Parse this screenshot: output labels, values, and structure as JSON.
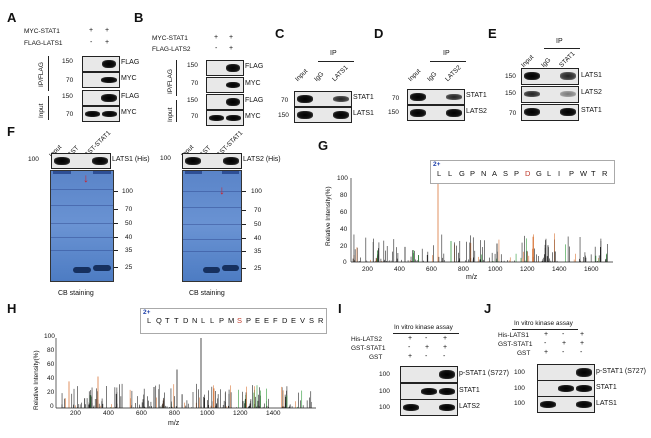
{
  "panels": {
    "A": "A",
    "B": "B",
    "C": "C",
    "D": "D",
    "E": "E",
    "F": "F",
    "G": "G",
    "H": "H",
    "I": "I",
    "J": "J"
  },
  "A": {
    "row1": "MYC-STAT1",
    "row2": "FLAG-LATS1",
    "r1": [
      "+",
      "+"
    ],
    "r2": [
      "-",
      "+"
    ],
    "side_top": "IP/FLAG",
    "side_bot": "Input",
    "labels": [
      "FLAG",
      "MYC",
      "FLAG",
      "MYC"
    ],
    "mw": [
      "150",
      "70",
      "150",
      "70"
    ]
  },
  "B": {
    "row1": "MYC-STAT1",
    "row2": "FLAG-LATS2",
    "r1": [
      "+",
      "+"
    ],
    "r2": [
      "-",
      "+"
    ],
    "side_top": "IP/FLAG",
    "side_bot": "Input",
    "labels": [
      "FLAG",
      "MYC",
      "FLAG",
      "MYC"
    ],
    "mw": [
      "150",
      "70",
      "150",
      "70"
    ]
  },
  "C": {
    "ip": "IP",
    "lanes": [
      "Input",
      "IgG",
      "LATS1"
    ],
    "labels": [
      "STAT1",
      "LATS1"
    ],
    "mw": [
      "70",
      "150"
    ]
  },
  "D": {
    "ip": "IP",
    "lanes": [
      "Input",
      "IgG",
      "LATS2"
    ],
    "labels": [
      "STAT1",
      "LATS2"
    ],
    "mw": [
      "70",
      "150"
    ]
  },
  "E": {
    "ip": "IP",
    "lanes": [
      "Input",
      "IgG",
      "STAT1"
    ],
    "labels": [
      "LATS1",
      "LATS2",
      "STAT1"
    ],
    "mw": [
      "150",
      "150",
      "70"
    ]
  },
  "F": {
    "lanes": [
      "Input",
      "GST",
      "GST-STAT1"
    ],
    "left": {
      "blot_label": "LATS1 (His)",
      "blot_mw": "100"
    },
    "right": {
      "blot_label": "LATS2 (His)",
      "blot_mw": "100"
    },
    "markers": [
      "100",
      "70",
      "50",
      "40",
      "35",
      "25"
    ],
    "caption": "CB staining"
  },
  "G": {
    "charge": "2+",
    "peptide": [
      "L",
      "L",
      "G",
      "P",
      "N",
      "A",
      "S",
      "P",
      "D",
      "G",
      "L",
      "I",
      "P",
      "W",
      "T",
      "R"
    ],
    "ylabel": "Relative Intensity(%)",
    "xlabel": "m/z",
    "yticks": [
      "100",
      "80",
      "60",
      "40",
      "20",
      "0"
    ],
    "xticks": [
      "200",
      "400",
      "600",
      "800",
      "1000",
      "1200",
      "1400",
      "1600"
    ]
  },
  "H": {
    "charge": "2+",
    "peptide": [
      "L",
      "Q",
      "T",
      "T",
      "D",
      "N",
      "L",
      "L",
      "P",
      "M",
      "S",
      "P",
      "E",
      "E",
      "F",
      "D",
      "E",
      "V",
      "S",
      "R"
    ],
    "ylabel": "Relative Intensity(%)",
    "xlabel": "m/z",
    "yticks": [
      "100",
      "80",
      "60",
      "40",
      "20",
      "0"
    ],
    "xticks": [
      "200",
      "400",
      "600",
      "800",
      "1000",
      "1200",
      "1400"
    ]
  },
  "I": {
    "title": "In vitro kinase assay",
    "rows": [
      {
        "name": "His-LATS2",
        "vals": [
          "+",
          "-",
          "+"
        ]
      },
      {
        "name": "GST-STAT1",
        "vals": [
          "-",
          "+",
          "+"
        ]
      },
      {
        "name": "GST",
        "vals": [
          "+",
          "-",
          "-"
        ]
      }
    ],
    "labels": [
      "p-STAT1  (S727)",
      "STAT1",
      "LATS2"
    ],
    "mw": [
      "100",
      "100",
      "100"
    ]
  },
  "J": {
    "title": "In vitro kinase assay",
    "rows": [
      {
        "name": "His-LATS1",
        "vals": [
          "+",
          "-",
          "+"
        ]
      },
      {
        "name": "GST-STAT1",
        "vals": [
          "-",
          "+",
          "+"
        ]
      },
      {
        "name": "GST",
        "vals": [
          "+",
          "-",
          "-"
        ]
      }
    ],
    "labels": [
      "p-STAT1  (S727)",
      "STAT1",
      "LATS1"
    ],
    "mw": [
      "100",
      "100",
      "100"
    ]
  }
}
